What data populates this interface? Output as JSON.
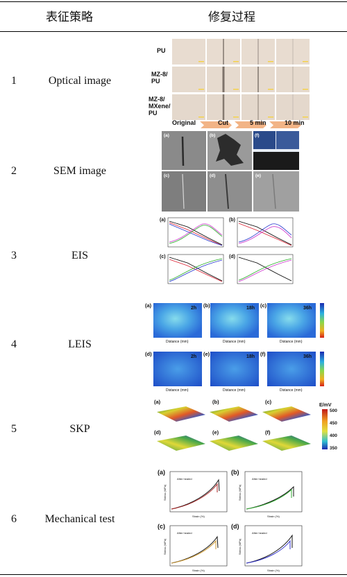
{
  "header": {
    "col1": "表征策略",
    "col2": "修复过程"
  },
  "rows": [
    {
      "num": "1",
      "name": "Optical image"
    },
    {
      "num": "2",
      "name": "SEM image"
    },
    {
      "num": "3",
      "name": "EIS"
    },
    {
      "num": "4",
      "name": "LEIS"
    },
    {
      "num": "5",
      "name": "SKP"
    },
    {
      "num": "6",
      "name": "Mechanical test"
    }
  ],
  "optical": {
    "samples": [
      "PU",
      "MZ-8/ PU",
      "MZ-8/ MXene/ PU"
    ],
    "steps": [
      "Original",
      "Cut",
      "5 min",
      "10 min"
    ]
  },
  "sem": {
    "panels": [
      "(a)",
      "(b)",
      "(c)",
      "(d)",
      "(e)",
      "(f)"
    ]
  },
  "eis": {
    "panels": [
      "(a)",
      "(b)",
      "(c)",
      "(d)"
    ]
  },
  "leis": {
    "panels": [
      "(a)",
      "(b)",
      "(c)",
      "(d)",
      "(e)",
      "(f)"
    ],
    "times": [
      "2h",
      "18h",
      "36h",
      "2h",
      "18h",
      "36h"
    ],
    "axis": "Distance (mm)"
  },
  "skp": {
    "panels": [
      "(a)",
      "(b)",
      "(c)",
      "(d)",
      "(e)",
      "(f)"
    ],
    "unit": "E/mV",
    "ticks": [
      "500",
      "450",
      "400",
      "350"
    ]
  },
  "mech": {
    "panels": [
      "(a)",
      "(b)",
      "(c)",
      "(d)"
    ],
    "legend_after": "After healed",
    "xlabel": "Strain (%)",
    "ylabel": "Stress (MPa)"
  },
  "colors": {
    "optical_bg": "#e8dcd0",
    "arrow": "#f2b486",
    "leis_center": "#7ad4e8"
  }
}
